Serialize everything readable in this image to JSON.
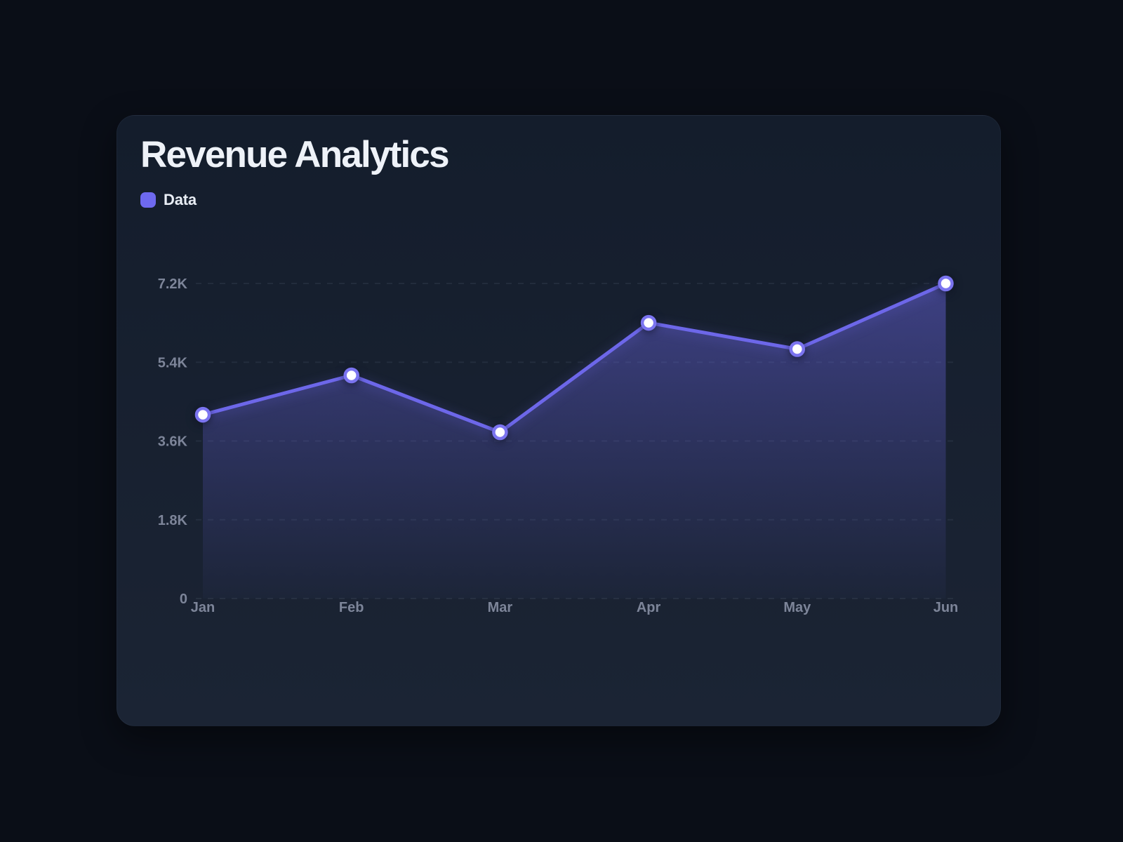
{
  "page": {
    "background_color": "#0a0e17"
  },
  "card": {
    "background_color": "#161f2e",
    "title": "Revenue Analytics"
  },
  "legend": {
    "items": [
      {
        "label": "Data",
        "color": "#6e69ef"
      }
    ]
  },
  "chart_data": {
    "type": "area",
    "title": "Revenue Analytics",
    "categories": [
      "Jan",
      "Feb",
      "Mar",
      "Apr",
      "May",
      "Jun"
    ],
    "series": [
      {
        "name": "Data",
        "values": [
          4200,
          5100,
          3800,
          6300,
          5700,
          7200
        ]
      }
    ],
    "xlabel": "",
    "ylabel": "",
    "ylim": [
      0,
      7200
    ],
    "yticks": [
      0,
      1800,
      3600,
      5400,
      7200
    ],
    "ytick_labels": [
      "0",
      "1.8K",
      "3.6K",
      "5.4K",
      "7.2K"
    ],
    "grid": "horizontal-dashed",
    "legend_position": "top-left",
    "colors": {
      "line": "#6d67e9",
      "area_top": "rgba(110,105,235,0.45)",
      "area_bottom": "rgba(110,105,235,0.03)",
      "point_fill": "#ffffff",
      "point_ring": "#7b74f0",
      "grid_line": "rgba(150,165,190,0.10)",
      "tick_label": "#7d8599"
    }
  }
}
